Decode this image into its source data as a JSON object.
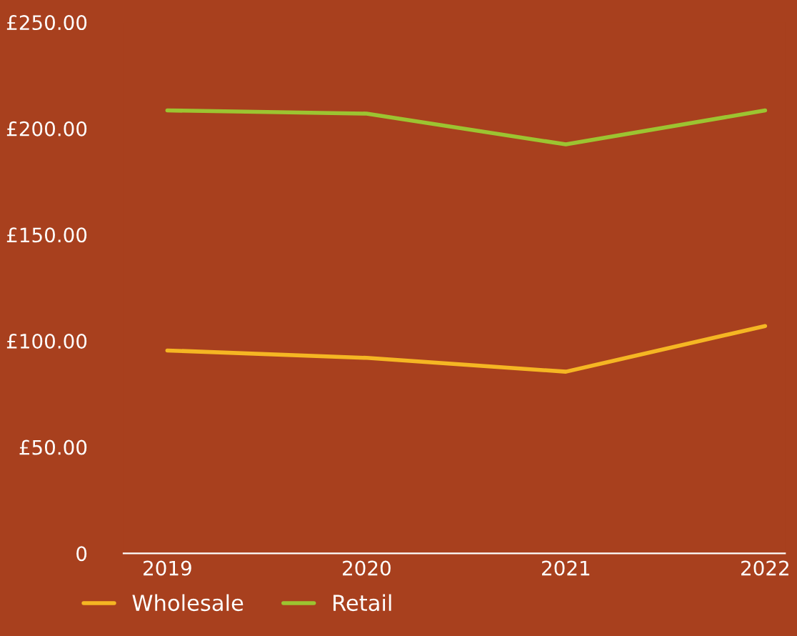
{
  "chart_data": {
    "type": "line",
    "categories": [
      "2019",
      "2020",
      "2021",
      "2022"
    ],
    "series": [
      {
        "name": "Wholesale",
        "color": "#f5b623",
        "values": [
          95.5,
          92,
          85.5,
          107
        ]
      },
      {
        "name": "Retail",
        "color": "#9cc431",
        "values": [
          208.5,
          207,
          192.5,
          208.5
        ]
      }
    ],
    "ylim": [
      0,
      250
    ],
    "yticks": [
      {
        "value": 0,
        "label": "0"
      },
      {
        "value": 50,
        "label": "£50.00"
      },
      {
        "value": 100,
        "label": "£100.00"
      },
      {
        "value": 150,
        "label": "£150.00"
      },
      {
        "value": 200,
        "label": "£200.00"
      },
      {
        "value": 250,
        "label": "£250.00"
      }
    ],
    "grid": false,
    "legend": "bottom left",
    "marker": "none",
    "line_style": "solid"
  }
}
